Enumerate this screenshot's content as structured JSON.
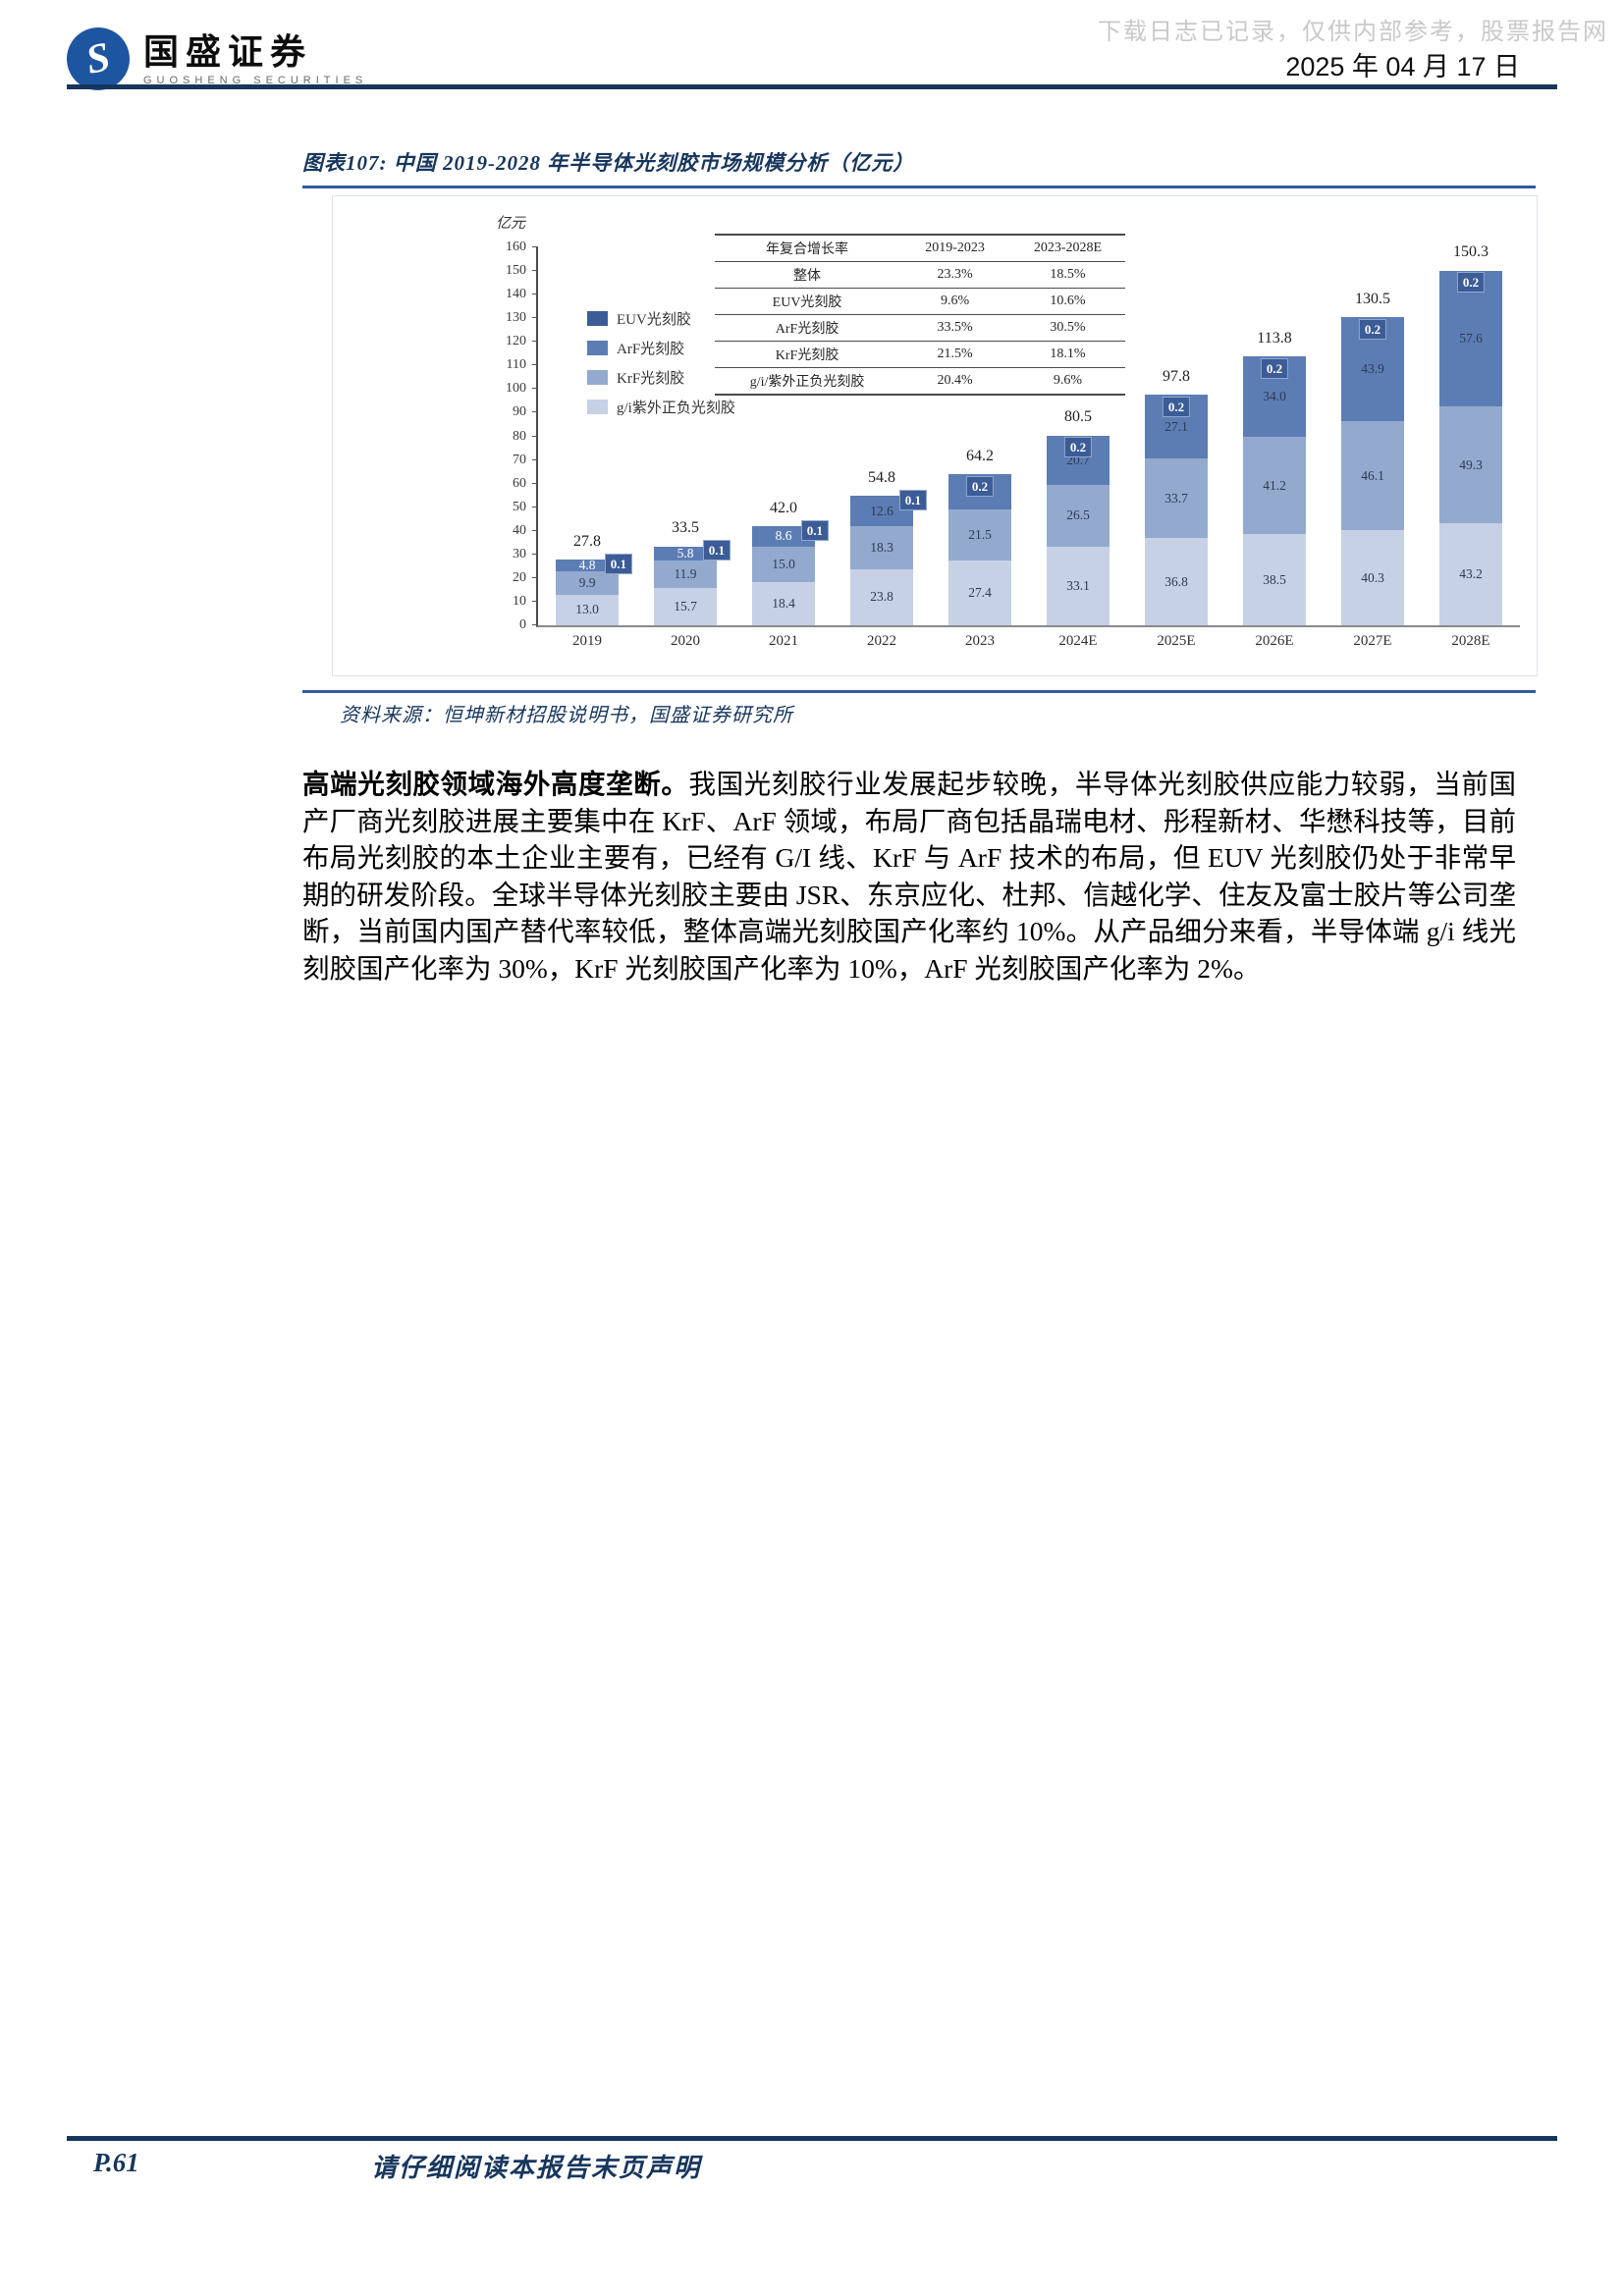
{
  "page": {
    "brand": {
      "name_cn": "国盛证券",
      "name_en": "GUOSHENG SECURITIES",
      "logo_glyph": "S"
    },
    "watermark": "下载日志已记录，仅供内部参考，股票报告网",
    "date": "2025 年 04 月 17 日",
    "footer": {
      "page_no": "P.61",
      "disclaimer": "请仔细阅读本报告末页声明"
    },
    "colors": {
      "accent_navy": "#17365d",
      "rule_blue": "#2e5c9e"
    }
  },
  "figure": {
    "title": "图表107:  中国 2019-2028 年半导体光刻胶市场规模分析（亿元）",
    "source": "资料来源：恒坤新材招股说明书，国盛证券研究所"
  },
  "chart_data": {
    "type": "bar",
    "stacked": true,
    "unit_label": "亿元",
    "ylim": [
      0,
      160
    ],
    "ytick_step": 10,
    "grid": false,
    "categories": [
      "2019",
      "2020",
      "2021",
      "2022",
      "2023",
      "2024E",
      "2025E",
      "2026E",
      "2027E",
      "2028E"
    ],
    "series": [
      {
        "name": "g/i紫外正负光刻胶",
        "color": "#c6d1e5",
        "values": [
          13.0,
          15.7,
          18.4,
          23.8,
          27.4,
          33.1,
          36.8,
          38.5,
          40.3,
          43.2
        ]
      },
      {
        "name": "KrF光刻胶",
        "color": "#93aace",
        "values": [
          9.9,
          11.9,
          15.0,
          18.3,
          21.5,
          26.5,
          33.7,
          41.2,
          46.1,
          49.3
        ]
      },
      {
        "name": "ArF光刻胶",
        "color": "#5c7db4",
        "values": [
          4.8,
          5.8,
          8.6,
          12.6,
          15.2,
          20.7,
          27.1,
          34.0,
          43.9,
          57.6
        ]
      },
      {
        "name": "EUV光刻胶",
        "color": "#3b5c97",
        "values": [
          0.1,
          0.1,
          0.1,
          0.1,
          0.2,
          0.2,
          0.2,
          0.2,
          0.2,
          0.2
        ]
      }
    ],
    "totals": [
      27.8,
      33.5,
      42.0,
      54.8,
      64.2,
      80.5,
      97.8,
      113.8,
      130.5,
      150.3
    ],
    "legend": [
      {
        "label": "EUV光刻胶",
        "color": "#3b5c97"
      },
      {
        "label": "ArF光刻胶",
        "color": "#5c7db4"
      },
      {
        "label": "KrF光刻胶",
        "color": "#93aace"
      },
      {
        "label": "g/i紫外正负光刻胶",
        "color": "#c6d1e5"
      }
    ],
    "legend_position": "upper-left",
    "inner_table": {
      "headers": [
        "年复合增长率",
        "2019-2023",
        "2023-2028E"
      ],
      "rows": [
        [
          "整体",
          "23.3%",
          "18.5%"
        ],
        [
          "EUV光刻胶",
          "9.6%",
          "10.6%"
        ],
        [
          "ArF光刻胶",
          "33.5%",
          "30.5%"
        ],
        [
          "KrF光刻胶",
          "21.5%",
          "18.1%"
        ],
        [
          "g/i/紫外正负光刻胶",
          "20.4%",
          "9.6%"
        ]
      ]
    }
  },
  "body": {
    "lead": "高端光刻胶领域海外高度垄断。",
    "text": "我国光刻胶行业发展起步较晚，半导体光刻胶供应能力较弱，当前国产厂商光刻胶进展主要集中在 KrF、ArF 领域，布局厂商包括晶瑞电材、彤程新材、华懋科技等，目前布局光刻胶的本土企业主要有，已经有 G/I 线、KrF 与 ArF 技术的布局，但 EUV 光刻胶仍处于非常早期的研发阶段。全球半导体光刻胶主要由 JSR、东京应化、杜邦、信越化学、住友及富士胶片等公司垄断，当前国内国产替代率较低，整体高端光刻胶国产化率约 10%。从产品细分来看，半导体端 g/i 线光刻胶国产化率为 30%，KrF 光刻胶国产化率为 10%，ArF 光刻胶国产化率为 2%。"
  }
}
